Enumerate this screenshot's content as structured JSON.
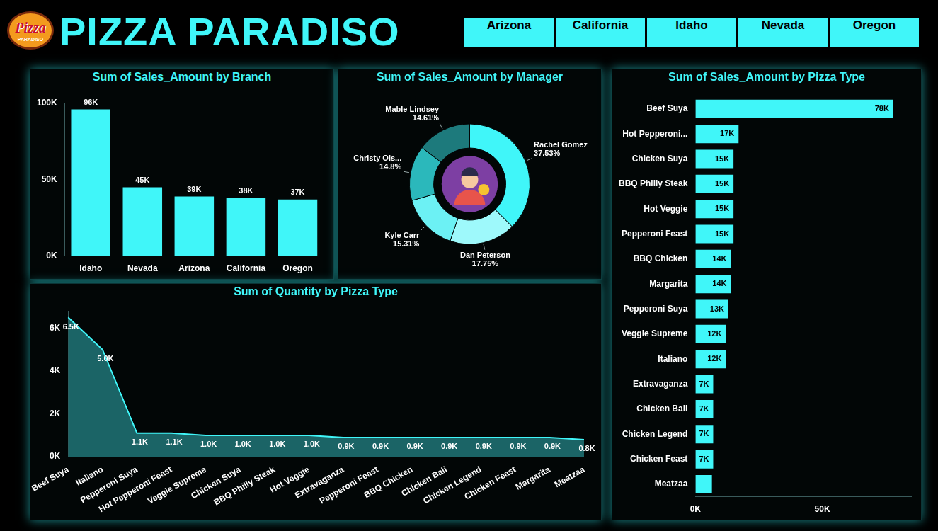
{
  "header": {
    "logo": "Pizza",
    "logo_subtitle": "PARADISO",
    "title": "PIZZA PARADISO",
    "filters": [
      "Arizona",
      "California",
      "Idaho",
      "Nevada",
      "Oregon"
    ]
  },
  "chart_data": [
    {
      "type": "bar",
      "title": "Sum of Sales_Amount by Branch",
      "categories": [
        "Idaho",
        "Nevada",
        "Arizona",
        "California",
        "Oregon"
      ],
      "values": [
        96000,
        45000,
        39000,
        38000,
        37000
      ],
      "value_labels": [
        "96K",
        "45K",
        "39K",
        "38K",
        "37K"
      ],
      "data_labels": true,
      "color": "#40f6f9",
      "ylim": [
        0,
        100000
      ],
      "yticks": [
        {
          "value": 0,
          "label": "0K"
        },
        {
          "value": 50000,
          "label": "50K"
        },
        {
          "value": 100000,
          "label": "100K"
        }
      ],
      "grid": false
    },
    {
      "type": "doughnut",
      "title": "Sum of Sales_Amount by Manager",
      "categories": [
        "Rachel Gomez",
        "Dan Peterson",
        "Kyle Carr",
        "Christy Ols...",
        "Mable Lindsey"
      ],
      "values": [
        37.53,
        17.75,
        15.31,
        14.8,
        14.61
      ],
      "value_labels": [
        "37.53%",
        "17.75%",
        "15.31%",
        "14.8%",
        "14.61%"
      ],
      "data_labels": true,
      "colors": [
        "#40f6f9",
        "#9ef9fb",
        "#6cf1f4",
        "#2bb8bb",
        "#1d7a7c"
      ]
    },
    {
      "type": "bar",
      "orientation": "horizontal",
      "title": "Sum of Sales_Amount by Pizza Type",
      "categories": [
        "Beef Suya",
        "Hot Pepperoni...",
        "Chicken Suya",
        "BBQ Philly Steak",
        "Hot Veggie",
        "Pepperoni Feast",
        "BBQ Chicken",
        "Margarita",
        "Pepperoni Suya",
        "Veggie Supreme",
        "Italiano",
        "Extravaganza",
        "Chicken Bali",
        "Chicken Legend",
        "Chicken Feast",
        "Meatzaa"
      ],
      "values": [
        78000,
        17000,
        15000,
        15000,
        15000,
        15000,
        14000,
        14000,
        13000,
        12000,
        12000,
        7000,
        7000,
        7000,
        7000,
        6500
      ],
      "value_labels": [
        "78K",
        "17K",
        "15K",
        "15K",
        "15K",
        "15K",
        "14K",
        "14K",
        "13K",
        "12K",
        "12K",
        "7K",
        "7K",
        "7K",
        "7K",
        null
      ],
      "data_labels": true,
      "color": "#40f6f9",
      "xlim": [
        0,
        85000
      ],
      "xticks": [
        {
          "value": 0,
          "label": "0K"
        },
        {
          "value": 50000,
          "label": "50K"
        }
      ],
      "grid": false
    },
    {
      "type": "area",
      "title": "Sum of Quantity by Pizza Type",
      "categories": [
        "Beef Suya",
        "Italiano",
        "Pepperoni Suya",
        "Hot Pepperoni Feast",
        "Veggie Supreme",
        "Chicken Suya",
        "BBQ Philly Steak",
        "Hot Veggie",
        "Extravaganza",
        "Pepperoni Feast",
        "BBQ Chicken",
        "Chicken Bali",
        "Chicken Legend",
        "Chicken Feast",
        "Margarita",
        "Meatzaa"
      ],
      "values": [
        6500,
        5000,
        1100,
        1100,
        1000,
        1000,
        1000,
        1000,
        900,
        900,
        900,
        900,
        900,
        900,
        900,
        800
      ],
      "value_labels": [
        "6.5K",
        "5.0K",
        "1.1K",
        "1.1K",
        "1.0K",
        "1.0K",
        "1.0K",
        "1.0K",
        "0.9K",
        "0.9K",
        "0.9K",
        "0.9K",
        "0.9K",
        "0.9K",
        "0.9K",
        "0.8K"
      ],
      "data_labels": true,
      "color": "#40f6f9",
      "ylim": [
        0,
        6800
      ],
      "yticks": [
        {
          "value": 0,
          "label": "0K"
        },
        {
          "value": 2000,
          "label": "2K"
        },
        {
          "value": 4000,
          "label": "4K"
        },
        {
          "value": 6000,
          "label": "6K"
        }
      ],
      "grid": false
    }
  ]
}
